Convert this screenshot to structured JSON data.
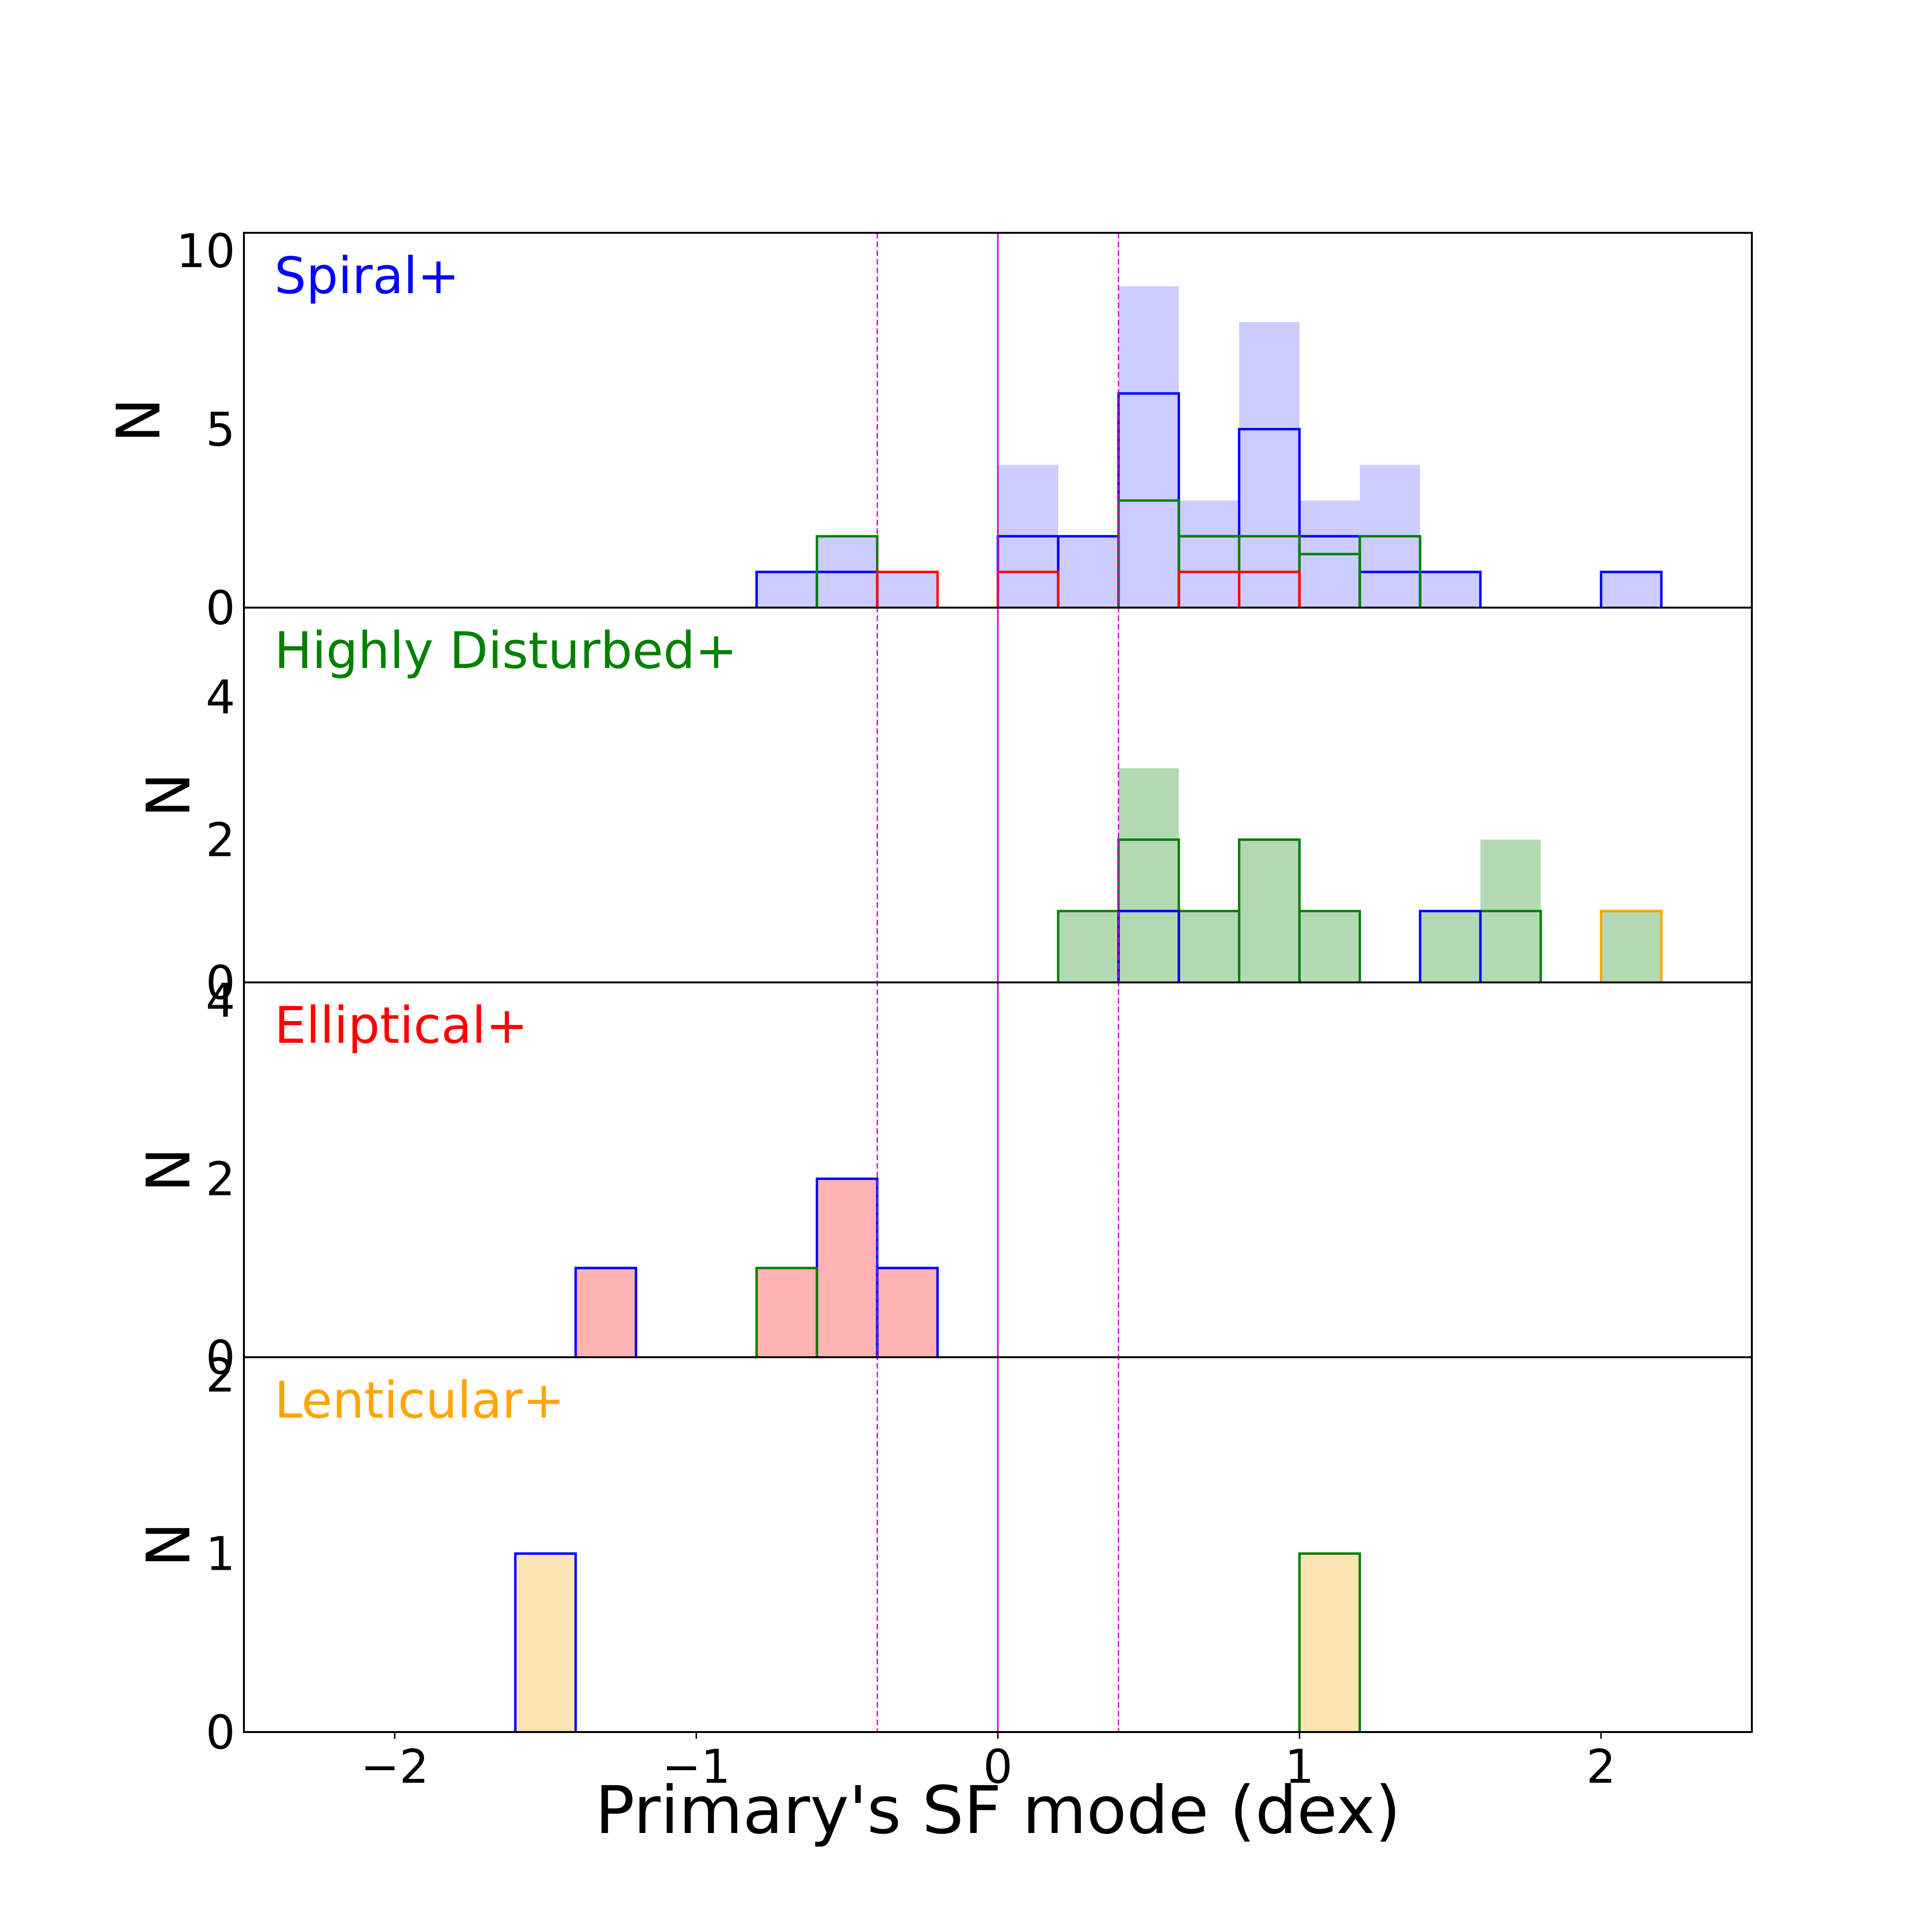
{
  "chart_data": {
    "type": "bar",
    "title": "",
    "xlabel": "Primary's SF mode (dex)",
    "xlim": [
      -2.5,
      2.5
    ],
    "x_ticks": [
      -2,
      -1,
      0,
      1,
      2
    ],
    "x_tick_labels": [
      "−2",
      "−1",
      "0",
      "1",
      "2"
    ],
    "bin_width": 0.2,
    "reference_lines": [
      {
        "x": -0.4,
        "style": "dashed",
        "color": "#c000c0"
      },
      {
        "x": 0.0,
        "style": "solid",
        "color": "#c000c0"
      },
      {
        "x": 0.4,
        "style": "dashed",
        "color": "#c000c0"
      }
    ],
    "panels": [
      {
        "label": "Spiral+",
        "label_color": "#0000ff",
        "ylabel": "N",
        "ylim": [
          0,
          10.5
        ],
        "y_ticks": [
          0,
          5,
          10
        ],
        "y_tick_labels": [
          "0",
          "5",
          "10"
        ],
        "filled": {
          "color": "#ccccff",
          "bins": [
            [
              -0.8,
              1
            ],
            [
              -0.6,
              2
            ],
            [
              -0.4,
              1
            ],
            [
              0.0,
              4
            ],
            [
              0.2,
              2
            ],
            [
              0.4,
              9
            ],
            [
              0.6,
              3
            ],
            [
              0.8,
              8
            ],
            [
              1.0,
              3
            ],
            [
              1.2,
              4
            ],
            [
              1.4,
              1
            ],
            [
              2.0,
              1
            ]
          ]
        },
        "outlines": [
          {
            "name": "Spiral",
            "color": "#0000ff",
            "bins": [
              [
                -0.8,
                1
              ],
              [
                -0.6,
                1
              ],
              [
                0.0,
                2
              ],
              [
                0.2,
                2
              ],
              [
                0.4,
                6
              ],
              [
                0.6,
                2
              ],
              [
                0.8,
                5
              ],
              [
                1.0,
                2
              ],
              [
                1.2,
                1
              ],
              [
                1.4,
                1
              ],
              [
                2.0,
                1
              ]
            ]
          },
          {
            "name": "Highly Disturbed",
            "color": "#008000",
            "bins": [
              [
                -0.6,
                2
              ],
              [
                0.4,
                3
              ],
              [
                0.6,
                2
              ],
              [
                0.8,
                2
              ],
              [
                1.0,
                1.5
              ],
              [
                1.2,
                2
              ]
            ]
          },
          {
            "name": "Elliptical",
            "color": "#ff0000",
            "bins": [
              [
                -0.4,
                1
              ],
              [
                0.0,
                1
              ],
              [
                0.6,
                1
              ],
              [
                0.8,
                1
              ]
            ]
          }
        ]
      },
      {
        "label": "Highly Disturbed+",
        "label_color": "#008000",
        "ylabel": "N",
        "ylim": [
          0,
          5.25
        ],
        "y_ticks": [
          0,
          2,
          4
        ],
        "y_tick_labels": [
          "0",
          "2",
          "4"
        ],
        "filled": {
          "color": "#b3d9b3",
          "bins": [
            [
              0.2,
              1
            ],
            [
              0.4,
              3
            ],
            [
              0.6,
              1
            ],
            [
              0.8,
              2
            ],
            [
              1.0,
              1
            ],
            [
              1.4,
              1
            ],
            [
              1.6,
              2
            ],
            [
              2.0,
              1
            ]
          ]
        },
        "outlines": [
          {
            "name": "Highly Disturbed",
            "color": "#008000",
            "bins": [
              [
                0.2,
                1
              ],
              [
                0.4,
                2
              ],
              [
                0.6,
                1
              ],
              [
                0.8,
                2
              ],
              [
                1.0,
                1
              ],
              [
                1.6,
                1
              ]
            ]
          },
          {
            "name": "Spiral",
            "color": "#0000ff",
            "bins": [
              [
                0.4,
                1
              ],
              [
                1.4,
                1
              ]
            ]
          },
          {
            "name": "Lenticular",
            "color": "#ffa500",
            "bins": [
              [
                2.0,
                1
              ]
            ]
          }
        ]
      },
      {
        "label": "Elliptical+",
        "label_color": "#ff0000",
        "ylabel": "N",
        "ylim": [
          0,
          4.2
        ],
        "y_ticks": [
          0,
          2,
          4
        ],
        "y_tick_labels": [
          "0",
          "2",
          "4"
        ],
        "filled": {
          "color": "#ffb3b3",
          "bins": [
            [
              -1.4,
              1
            ],
            [
              -0.8,
              1
            ],
            [
              -0.6,
              2
            ],
            [
              -0.4,
              1
            ]
          ]
        },
        "outlines": [
          {
            "name": "Spiral",
            "color": "#0000ff",
            "bins": [
              [
                -1.4,
                1
              ],
              [
                -0.6,
                2
              ],
              [
                -0.4,
                1
              ]
            ]
          },
          {
            "name": "Highly Disturbed",
            "color": "#008000",
            "bins": [
              [
                -0.8,
                1
              ]
            ]
          }
        ]
      },
      {
        "label": "Lenticular+",
        "label_color": "#ffa500",
        "ylabel": "N",
        "ylim": [
          0,
          2.1
        ],
        "y_ticks": [
          0,
          1,
          2
        ],
        "y_tick_labels": [
          "0",
          "1",
          "2"
        ],
        "filled": {
          "color": "#ffe4b3",
          "bins": [
            [
              -1.6,
              1
            ],
            [
              1.0,
              1
            ]
          ]
        },
        "outlines": [
          {
            "name": "Spiral",
            "color": "#0000ff",
            "bins": [
              [
                -1.6,
                1
              ]
            ]
          },
          {
            "name": "Highly Disturbed",
            "color": "#008000",
            "bins": [
              [
                1.0,
                1
              ]
            ]
          }
        ]
      }
    ]
  }
}
